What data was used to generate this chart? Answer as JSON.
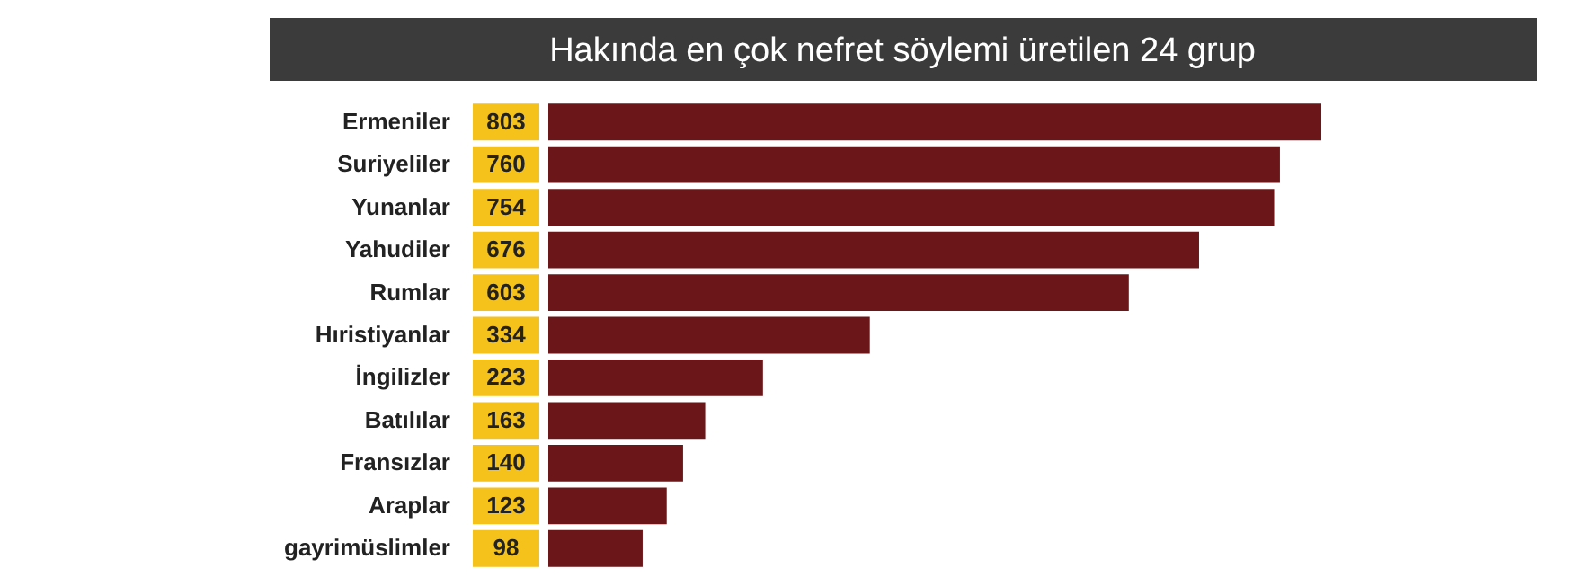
{
  "chart_data": {
    "type": "bar",
    "orientation": "horizontal",
    "title": "Hakında en çok nefret söylemi üretilen 24 grup",
    "categories": [
      "Ermeniler",
      "Suriyeliler",
      "Yunanlar",
      "Yahudiler",
      "Rumlar",
      "Hıristiyanlar",
      "İngilizler",
      "Batılılar",
      "Fransızlar",
      "Araplar",
      "gayrimüslimler"
    ],
    "values": [
      803,
      760,
      754,
      676,
      603,
      334,
      223,
      163,
      140,
      123,
      98
    ],
    "color": "#6b1719",
    "data_labels": true
  }
}
